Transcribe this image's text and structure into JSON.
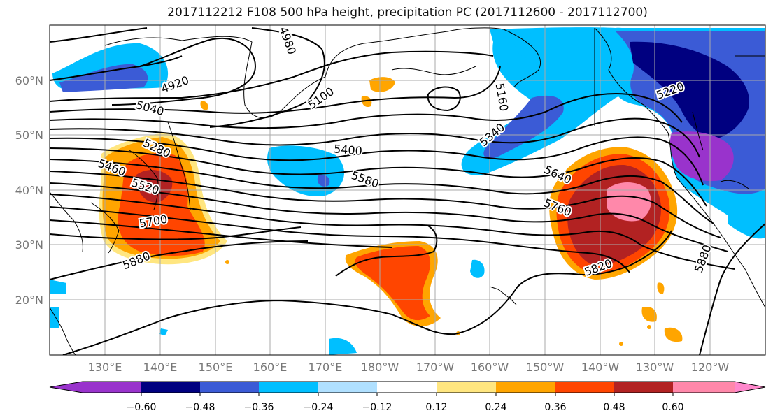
{
  "title": "2017112212 F108 500 hPa height, precipitation PC (2017112600 - 2017112700)",
  "latitude_labels": [
    "60°N",
    "50°N",
    "40°N",
    "30°N",
    "20°N"
  ],
  "longitude_labels": [
    "130°E",
    "140°E",
    "150°E",
    "160°E",
    "170°E",
    "180°W",
    "170°W",
    "160°W",
    "150°W",
    "140°W",
    "130°W",
    "120°W"
  ],
  "contour_labels": [
    "4920",
    "4980",
    "5100",
    "5040",
    "5220",
    "5280",
    "5340",
    "5400",
    "5460",
    "5520",
    "5580",
    "5640",
    "5700",
    "5760",
    "5820",
    "5880",
    "5880",
    "5160"
  ],
  "colorbar": {
    "ticks": [
      "−0.60",
      "−0.48",
      "−0.36",
      "−0.24",
      "−0.12",
      "0.12",
      "0.24",
      "0.36",
      "0.48",
      "0.60"
    ],
    "colors": [
      "#9933cc",
      "#000080",
      "#3b5bd6",
      "#00bfff",
      "#b0e0ff",
      "#ffffff",
      "#ffe680",
      "#ffa500",
      "#ff4500",
      "#b22222",
      "#ff88aa",
      "#ff88cc"
    ]
  }
}
